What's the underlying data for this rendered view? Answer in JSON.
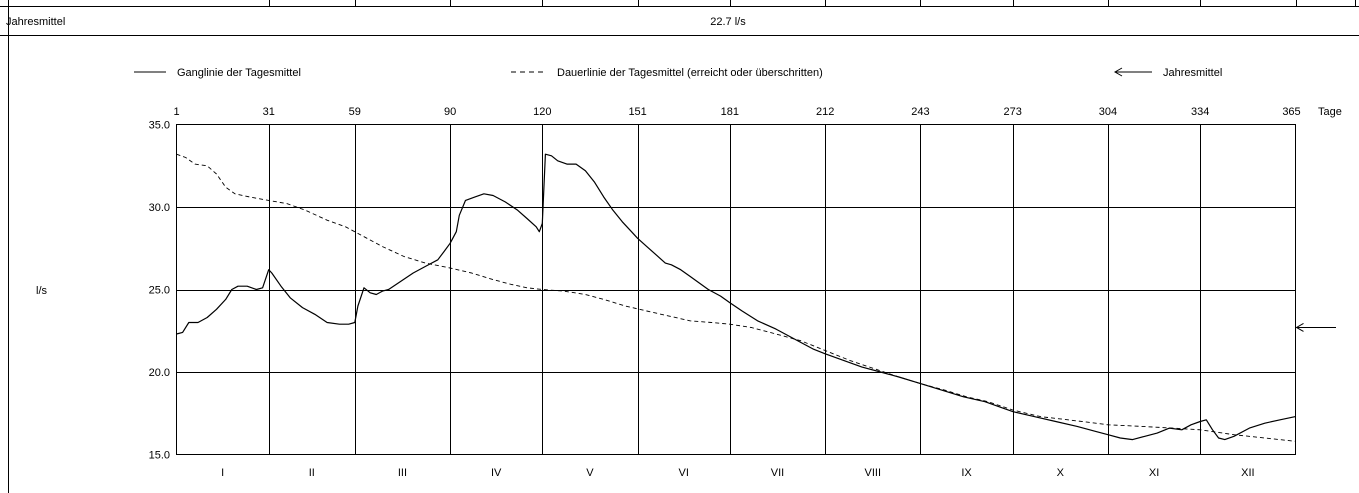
{
  "header": {
    "label": "Jahresmittel",
    "value": "22.7 l/s"
  },
  "legend": {
    "ganglinie": "Ganglinie der Tagesmittel",
    "dauerlinie": "Dauerlinie der Tagesmittel (erreicht oder überschritten)",
    "jahresmittel": "Jahresmittel"
  },
  "chart_data": {
    "type": "line",
    "ylabel": "l/s",
    "xunit": "Tage",
    "xlim": [
      1,
      365
    ],
    "ylim": [
      15.0,
      35.0
    ],
    "x_ticks": [
      1,
      31,
      59,
      90,
      120,
      151,
      181,
      212,
      243,
      273,
      304,
      334,
      365
    ],
    "y_ticks": [
      "35.0",
      "30.0",
      "25.0",
      "20.0",
      "15.0"
    ],
    "months": [
      "I",
      "II",
      "III",
      "IV",
      "V",
      "VI",
      "VII",
      "VIII",
      "IX",
      "X",
      "XI",
      "XII"
    ],
    "grid": true,
    "mean": 22.7,
    "series": [
      {
        "name": "Ganglinie der Tagesmittel",
        "style": "solid",
        "points": [
          [
            1,
            22.3
          ],
          [
            3,
            22.4
          ],
          [
            5,
            23.0
          ],
          [
            8,
            23.0
          ],
          [
            11,
            23.3
          ],
          [
            14,
            23.8
          ],
          [
            17,
            24.4
          ],
          [
            19,
            25.0
          ],
          [
            21,
            25.2
          ],
          [
            24,
            25.2
          ],
          [
            27,
            25.0
          ],
          [
            29,
            25.1
          ],
          [
            31,
            26.2
          ],
          [
            32,
            26.0
          ],
          [
            35,
            25.2
          ],
          [
            38,
            24.5
          ],
          [
            42,
            23.9
          ],
          [
            46,
            23.5
          ],
          [
            50,
            23.0
          ],
          [
            54,
            22.9
          ],
          [
            57,
            22.9
          ],
          [
            59,
            23.0
          ],
          [
            60,
            24.0
          ],
          [
            62,
            25.1
          ],
          [
            64,
            24.8
          ],
          [
            66,
            24.7
          ],
          [
            68,
            24.9
          ],
          [
            70,
            25.0
          ],
          [
            74,
            25.5
          ],
          [
            78,
            26.0
          ],
          [
            82,
            26.4
          ],
          [
            86,
            26.8
          ],
          [
            88,
            27.3
          ],
          [
            90,
            27.8
          ],
          [
            92,
            28.5
          ],
          [
            93,
            29.5
          ],
          [
            95,
            30.4
          ],
          [
            98,
            30.6
          ],
          [
            101,
            30.8
          ],
          [
            104,
            30.7
          ],
          [
            108,
            30.3
          ],
          [
            112,
            29.8
          ],
          [
            115,
            29.3
          ],
          [
            118,
            28.8
          ],
          [
            119,
            28.5
          ],
          [
            120,
            29.0
          ],
          [
            121,
            33.2
          ],
          [
            123,
            33.1
          ],
          [
            125,
            32.8
          ],
          [
            128,
            32.6
          ],
          [
            131,
            32.6
          ],
          [
            134,
            32.2
          ],
          [
            137,
            31.5
          ],
          [
            140,
            30.6
          ],
          [
            143,
            29.8
          ],
          [
            146,
            29.1
          ],
          [
            149,
            28.5
          ],
          [
            151,
            28.1
          ],
          [
            154,
            27.6
          ],
          [
            157,
            27.1
          ],
          [
            160,
            26.6
          ],
          [
            162,
            26.5
          ],
          [
            165,
            26.2
          ],
          [
            168,
            25.8
          ],
          [
            171,
            25.4
          ],
          [
            174,
            25.0
          ],
          [
            178,
            24.6
          ],
          [
            181,
            24.2
          ],
          [
            185,
            23.7
          ],
          [
            190,
            23.1
          ],
          [
            196,
            22.6
          ],
          [
            202,
            22.0
          ],
          [
            208,
            21.4
          ],
          [
            212,
            21.1
          ],
          [
            218,
            20.7
          ],
          [
            224,
            20.3
          ],
          [
            230,
            20.0
          ],
          [
            236,
            19.7
          ],
          [
            243,
            19.3
          ],
          [
            250,
            18.9
          ],
          [
            257,
            18.5
          ],
          [
            264,
            18.2
          ],
          [
            270,
            17.8
          ],
          [
            273,
            17.6
          ],
          [
            280,
            17.3
          ],
          [
            287,
            17.0
          ],
          [
            294,
            16.7
          ],
          [
            300,
            16.4
          ],
          [
            304,
            16.2
          ],
          [
            308,
            16.0
          ],
          [
            312,
            15.9
          ],
          [
            316,
            16.1
          ],
          [
            320,
            16.3
          ],
          [
            324,
            16.6
          ],
          [
            328,
            16.5
          ],
          [
            331,
            16.8
          ],
          [
            334,
            17.0
          ],
          [
            336,
            17.1
          ],
          [
            338,
            16.5
          ],
          [
            340,
            16.0
          ],
          [
            342,
            15.9
          ],
          [
            345,
            16.1
          ],
          [
            350,
            16.6
          ],
          [
            355,
            16.9
          ],
          [
            360,
            17.1
          ],
          [
            365,
            17.3
          ]
        ]
      },
      {
        "name": "Dauerlinie der Tagesmittel (erreicht oder überschritten)",
        "style": "dashed",
        "points": [
          [
            1,
            33.2
          ],
          [
            4,
            33.0
          ],
          [
            7,
            32.6
          ],
          [
            11,
            32.5
          ],
          [
            14,
            32.0
          ],
          [
            17,
            31.2
          ],
          [
            20,
            30.8
          ],
          [
            25,
            30.6
          ],
          [
            31,
            30.4
          ],
          [
            37,
            30.2
          ],
          [
            43,
            29.8
          ],
          [
            50,
            29.2
          ],
          [
            56,
            28.8
          ],
          [
            62,
            28.2
          ],
          [
            68,
            27.6
          ],
          [
            75,
            27.0
          ],
          [
            82,
            26.6
          ],
          [
            90,
            26.3
          ],
          [
            97,
            26.0
          ],
          [
            104,
            25.6
          ],
          [
            110,
            25.3
          ],
          [
            115,
            25.1
          ],
          [
            120,
            25.0
          ],
          [
            127,
            24.9
          ],
          [
            134,
            24.7
          ],
          [
            140,
            24.4
          ],
          [
            147,
            24.0
          ],
          [
            154,
            23.7
          ],
          [
            161,
            23.4
          ],
          [
            168,
            23.1
          ],
          [
            175,
            23.0
          ],
          [
            181,
            22.9
          ],
          [
            188,
            22.7
          ],
          [
            196,
            22.3
          ],
          [
            204,
            21.9
          ],
          [
            212,
            21.3
          ],
          [
            220,
            20.7
          ],
          [
            228,
            20.2
          ],
          [
            236,
            19.7
          ],
          [
            243,
            19.3
          ],
          [
            251,
            18.9
          ],
          [
            258,
            18.5
          ],
          [
            265,
            18.2
          ],
          [
            273,
            17.7
          ],
          [
            282,
            17.3
          ],
          [
            291,
            17.1
          ],
          [
            300,
            16.9
          ],
          [
            304,
            16.8
          ],
          [
            315,
            16.7
          ],
          [
            325,
            16.6
          ],
          [
            334,
            16.5
          ],
          [
            345,
            16.2
          ],
          [
            355,
            16.0
          ],
          [
            365,
            15.8
          ]
        ]
      }
    ]
  }
}
